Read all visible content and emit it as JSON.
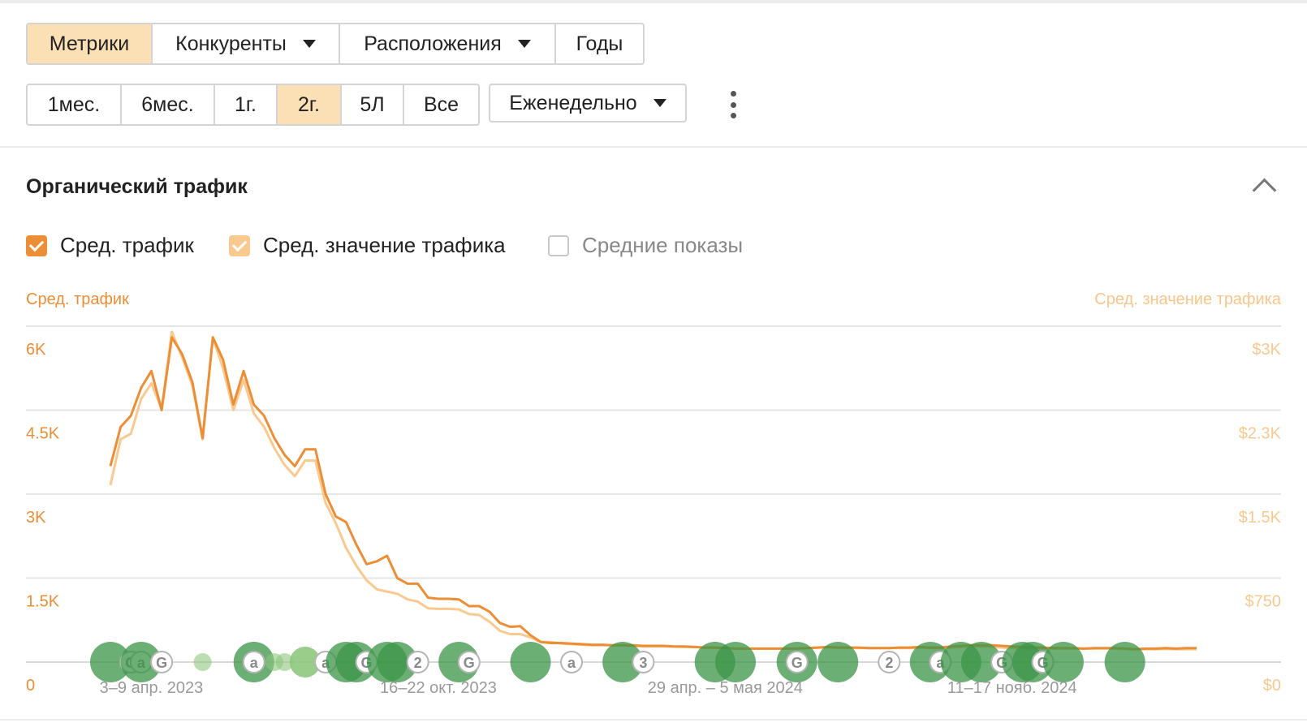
{
  "tabs": [
    {
      "label": "Метрики",
      "active": true,
      "dropdown": false
    },
    {
      "label": "Конкуренты",
      "active": false,
      "dropdown": true
    },
    {
      "label": "Расположения",
      "active": false,
      "dropdown": true
    },
    {
      "label": "Годы",
      "active": false,
      "dropdown": false
    }
  ],
  "ranges": [
    {
      "label": "1мес.",
      "active": false
    },
    {
      "label": "6мес.",
      "active": false
    },
    {
      "label": "1г.",
      "active": false
    },
    {
      "label": "2г.",
      "active": true
    },
    {
      "label": "5Л",
      "active": false
    },
    {
      "label": "Все",
      "active": false
    }
  ],
  "interval": {
    "label": "Еженедельно"
  },
  "section": {
    "title": "Органический трафик"
  },
  "legend": {
    "avg_traffic": "Сред. трафик",
    "avg_traffic_value": "Сред. значение трафика",
    "avg_impressions": "Средние показы"
  },
  "colors": {
    "traffic": "#ec8e35",
    "traffic_value": "#f9c98f",
    "event_dot": "#3b9447",
    "event_light": "#8fc77d",
    "grid": "#e6e6e6"
  },
  "chart_data": {
    "type": "line",
    "y_left_label": "Сред. трафик",
    "y_right_label": "Сред. значение трафика",
    "y_left_ticks": [
      "0",
      "1.5K",
      "3K",
      "4.5K",
      "6K"
    ],
    "y_right_ticks": [
      "$0",
      "$750",
      "$1.5K",
      "$2.3K",
      "$3K"
    ],
    "ylim_left": [
      0,
      6000
    ],
    "ylim_right": [
      0,
      3000
    ],
    "x_ticks": [
      "3–9 апр. 2023",
      "16–22 окт. 2023",
      "29 апр. – 5 мая 2024",
      "11–17 нояб. 2024"
    ],
    "x_tick_week_index": [
      4,
      32,
      60,
      88
    ],
    "grid": true,
    "series": [
      {
        "name": "Сред. трафик",
        "axis": "left",
        "values": [
          3500,
          4200,
          4400,
          4900,
          5200,
          4500,
          5800,
          5500,
          5000,
          4000,
          5800,
          5400,
          4600,
          5200,
          4600,
          4400,
          4000,
          3700,
          3500,
          3800,
          3800,
          3000,
          2600,
          2500,
          2100,
          1750,
          1800,
          1900,
          1500,
          1400,
          1400,
          1150,
          1130,
          1130,
          1120,
          1000,
          1000,
          900,
          700,
          630,
          640,
          480,
          360,
          340,
          340,
          330,
          320,
          310,
          310,
          300,
          300,
          300,
          290,
          290,
          290,
          280,
          280,
          270,
          260,
          260,
          250,
          240,
          240,
          240,
          240,
          240,
          240,
          240,
          250,
          260,
          270,
          260,
          260,
          260,
          250,
          250,
          250,
          260,
          260,
          270,
          260,
          260,
          280,
          290,
          300,
          300,
          300,
          290,
          280,
          270,
          260,
          260,
          250,
          250,
          250,
          240,
          250,
          250,
          250,
          240,
          230,
          240,
          240,
          250,
          240,
          250,
          250
        ]
      },
      {
        "name": "Сред. значение трафика",
        "axis": "right",
        "values": [
          1580,
          1990,
          2040,
          2350,
          2490,
          2260,
          2950,
          2720,
          2470,
          1990,
          2900,
          2620,
          2250,
          2520,
          2220,
          2100,
          1910,
          1760,
          1660,
          1800,
          1800,
          1420,
          1240,
          1020,
          860,
          730,
          650,
          630,
          610,
          560,
          540,
          480,
          475,
          475,
          470,
          430,
          420,
          360,
          280,
          250,
          250,
          220,
          180,
          180,
          165,
          160,
          155,
          150,
          150,
          150,
          150,
          145,
          140,
          140,
          140,
          138,
          135,
          135,
          130,
          130,
          125,
          120,
          120,
          120,
          120,
          120,
          120,
          120,
          125,
          130,
          130,
          130,
          130,
          125,
          125,
          125,
          125,
          125,
          125,
          125,
          125,
          125,
          130,
          135,
          140,
          140,
          135,
          130,
          125,
          125,
          120,
          120,
          120,
          120,
          120,
          120,
          120,
          120,
          120,
          118,
          115,
          115,
          115,
          118,
          115,
          115,
          115
        ]
      }
    ],
    "events": [
      {
        "week": 0,
        "kind": "big"
      },
      {
        "week": 2,
        "kind": "G"
      },
      {
        "week": 3,
        "kind": "a"
      },
      {
        "week": 3,
        "kind": "big"
      },
      {
        "week": 5,
        "kind": "G"
      },
      {
        "week": 9,
        "kind": "small"
      },
      {
        "week": 14,
        "kind": "big"
      },
      {
        "week": 14,
        "kind": "a"
      },
      {
        "week": 16,
        "kind": "small"
      },
      {
        "week": 17,
        "kind": "small"
      },
      {
        "week": 19,
        "kind": "big-light"
      },
      {
        "week": 21,
        "kind": "a"
      },
      {
        "week": 23,
        "kind": "big"
      },
      {
        "week": 24,
        "kind": "big"
      },
      {
        "week": 25,
        "kind": "G"
      },
      {
        "week": 27,
        "kind": "big"
      },
      {
        "week": 28,
        "kind": "big"
      },
      {
        "week": 30,
        "kind": "2"
      },
      {
        "week": 34,
        "kind": "big"
      },
      {
        "week": 35,
        "kind": "G"
      },
      {
        "week": 41,
        "kind": "big"
      },
      {
        "week": 45,
        "kind": "a"
      },
      {
        "week": 50,
        "kind": "big"
      },
      {
        "week": 52,
        "kind": "3"
      },
      {
        "week": 59,
        "kind": "big"
      },
      {
        "week": 61,
        "kind": "big"
      },
      {
        "week": 67,
        "kind": "big"
      },
      {
        "week": 67,
        "kind": "G"
      },
      {
        "week": 71,
        "kind": "big"
      },
      {
        "week": 76,
        "kind": "2"
      },
      {
        "week": 80,
        "kind": "big"
      },
      {
        "week": 81,
        "kind": "a"
      },
      {
        "week": 83,
        "kind": "big"
      },
      {
        "week": 85,
        "kind": "big"
      },
      {
        "week": 87,
        "kind": "G"
      },
      {
        "week": 89,
        "kind": "big"
      },
      {
        "week": 90,
        "kind": "big"
      },
      {
        "week": 91,
        "kind": "G"
      },
      {
        "week": 91,
        "kind": "G"
      },
      {
        "week": 93,
        "kind": "big"
      },
      {
        "week": 99,
        "kind": "big"
      }
    ]
  }
}
